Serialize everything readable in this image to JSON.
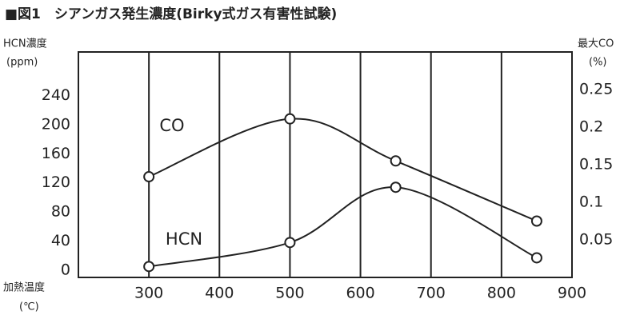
{
  "chart_data": {
    "type": "line",
    "title": "■図1　シアンガス発生濃度(Birky式ガス有害性試験)",
    "y_label": [
      "HCN濃度",
      "(ppm)"
    ],
    "y2_label": [
      "最大CO",
      "(%)"
    ],
    "x_label": [
      "加熱温度",
      "(℃)"
    ],
    "x": [
      300,
      500,
      650,
      850
    ],
    "series": [
      {
        "name": "CO",
        "color": "#222222",
        "axis": "y2",
        "values": [
          0.134,
          0.211,
          0.155,
          0.075
        ]
      },
      {
        "name": "HCN",
        "color": "#222222",
        "values": [
          5,
          38,
          114,
          17
        ]
      }
    ],
    "xlim": [
      200,
      900
    ],
    "xticks": [
      300,
      400,
      500,
      600,
      700,
      800,
      900
    ],
    "ylim": [
      -10,
      300
    ],
    "yticks": [
      0,
      40,
      80,
      120,
      160,
      200,
      240
    ],
    "y2lim": [
      0,
      0.3
    ],
    "y2ticks": [
      0.05,
      0.1,
      0.15,
      0.2,
      0.25
    ],
    "grid": true
  }
}
